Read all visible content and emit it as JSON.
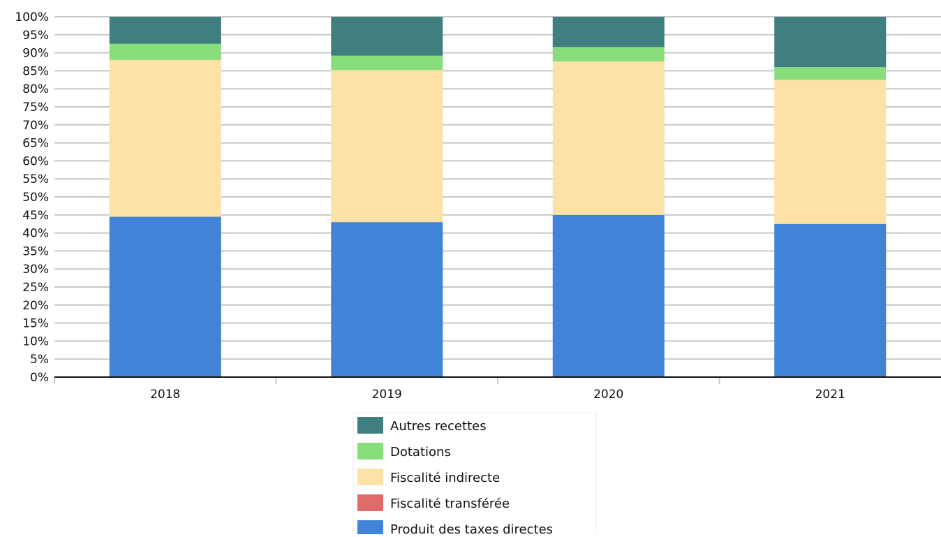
{
  "chart_data": {
    "type": "bar",
    "stacked": true,
    "categories": [
      "2018",
      "2019",
      "2020",
      "2021"
    ],
    "series": [
      {
        "name": "Produit des taxes directes",
        "color": "#4183d7",
        "values": [
          44.5,
          43.0,
          45.0,
          42.5
        ]
      },
      {
        "name": "Fiscalité transférée",
        "color": "#e16a6a",
        "values": [
          0,
          0,
          0,
          0
        ]
      },
      {
        "name": "Fiscalité indirecte",
        "color": "#fce2a6",
        "values": [
          43.5,
          42.2,
          42.6,
          40.0
        ]
      },
      {
        "name": "Dotations",
        "color": "#88de7a",
        "values": [
          4.5,
          4.0,
          4.0,
          3.5
        ]
      },
      {
        "name": "Autres recettes",
        "color": "#407f7f",
        "values": [
          7.5,
          10.8,
          8.4,
          14.0
        ]
      }
    ],
    "y_ticks": [
      "0%",
      "5%",
      "10%",
      "15%",
      "20%",
      "25%",
      "30%",
      "35%",
      "40%",
      "45%",
      "50%",
      "55%",
      "60%",
      "65%",
      "70%",
      "75%",
      "80%",
      "85%",
      "90%",
      "95%",
      "100%"
    ],
    "ylim": [
      0,
      100
    ],
    "grid": true,
    "legend_position": "bottom",
    "legend_order": [
      "Autres recettes",
      "Dotations",
      "Fiscalité indirecte",
      "Fiscalité transférée",
      "Produit des taxes directes"
    ]
  }
}
